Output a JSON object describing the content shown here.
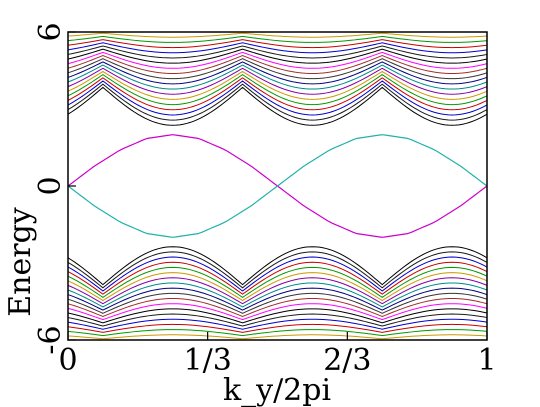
{
  "chart_data": {
    "type": "line",
    "title": "",
    "xlabel": "k_y/2pi",
    "ylabel": "Energy",
    "xlim": [
      0,
      1
    ],
    "ylim": [
      -6,
      6
    ],
    "xticks": [
      {
        "value": 0,
        "label": "0"
      },
      {
        "value": 0.3333,
        "label": "1/3"
      },
      {
        "value": 0.6667,
        "label": "2/3"
      },
      {
        "value": 1,
        "label": "1"
      }
    ],
    "yticks": [
      {
        "value": 6,
        "label": "6"
      },
      {
        "value": 0,
        "label": "0"
      },
      {
        "value": -6,
        "label": "-6"
      }
    ],
    "grid": false,
    "legend": "none",
    "bulk_bands": {
      "count_per_side": 20,
      "period": 0.3333,
      "phase_center": 0.25,
      "upper": {
        "inner_min": 2.1,
        "outer_min": 3.3,
        "max": 6.2,
        "node_energy": 2.9
      },
      "lower": {
        "inner_max": -2.1,
        "outer_max": -3.3,
        "min": -6.2,
        "node_energy": -2.9
      },
      "colors": [
        "#000000",
        "#1a1a1a",
        "#0000cc",
        "#cc0000",
        "#009900",
        "#cc9900",
        "#8800aa",
        "#008b8b",
        "#000080",
        "#333333",
        "#a52a2a",
        "#ff00ff"
      ]
    },
    "series": [
      {
        "color": "#cc00cc",
        "x": [
          0,
          0.0625,
          0.125,
          0.1875,
          0.25,
          0.3125,
          0.375,
          0.4375,
          0.5,
          0.5625,
          0.625,
          0.6875,
          0.75,
          0.8125,
          0.875,
          0.9375,
          1
        ],
        "y": [
          0,
          0.77,
          1.41,
          1.85,
          2.0,
          1.85,
          1.41,
          0.77,
          0,
          -0.77,
          -1.41,
          -1.85,
          -2.0,
          -1.85,
          -1.41,
          -0.77,
          0
        ]
      },
      {
        "color": "#20b2aa",
        "x": [
          0,
          0.0625,
          0.125,
          0.1875,
          0.25,
          0.3125,
          0.375,
          0.4375,
          0.5,
          0.5625,
          0.625,
          0.6875,
          0.75,
          0.8125,
          0.875,
          0.9375,
          1
        ],
        "y": [
          0,
          -0.77,
          -1.41,
          -1.85,
          -2.0,
          -1.85,
          -1.41,
          -0.77,
          0,
          0.77,
          1.41,
          1.85,
          2.0,
          1.85,
          1.41,
          0.77,
          0
        ]
      }
    ]
  }
}
